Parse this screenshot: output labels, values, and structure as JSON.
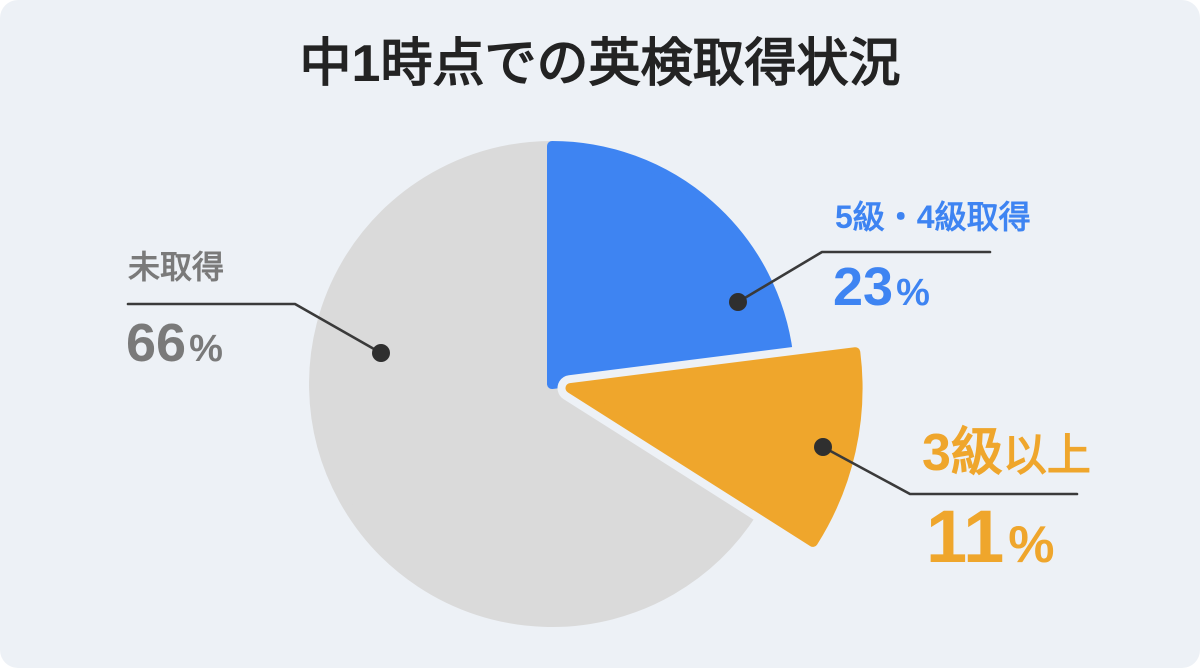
{
  "page": {
    "background": "#FFFFFF",
    "card_background": "#EDF1F6"
  },
  "chart_data": {
    "type": "pie",
    "title": "中1時点での英検取得状況",
    "title_color": "#232323",
    "start_angle_deg": -90,
    "direction": "clockwise",
    "legend": "none",
    "leader_line_color": "#3A3A3A",
    "dot_color": "#2F2F2F",
    "slices": [
      {
        "id": "grade5-4",
        "label": "5級・4級取得",
        "value": 23,
        "unit": "%",
        "color": "#3E84F2",
        "label_color": "#3E84F2",
        "exploded": false
      },
      {
        "id": "grade3plus",
        "label": "3級以上",
        "label_main": "3級",
        "label_suffix": "以上",
        "value": 11,
        "unit": "%",
        "color": "#EFA62C",
        "label_color": "#EFA62C",
        "exploded": true
      },
      {
        "id": "not-acquired",
        "label": "未取得",
        "value": 66,
        "unit": "%",
        "color": "#DADADA",
        "label_color": "#7A7A7A",
        "exploded": false
      }
    ]
  }
}
